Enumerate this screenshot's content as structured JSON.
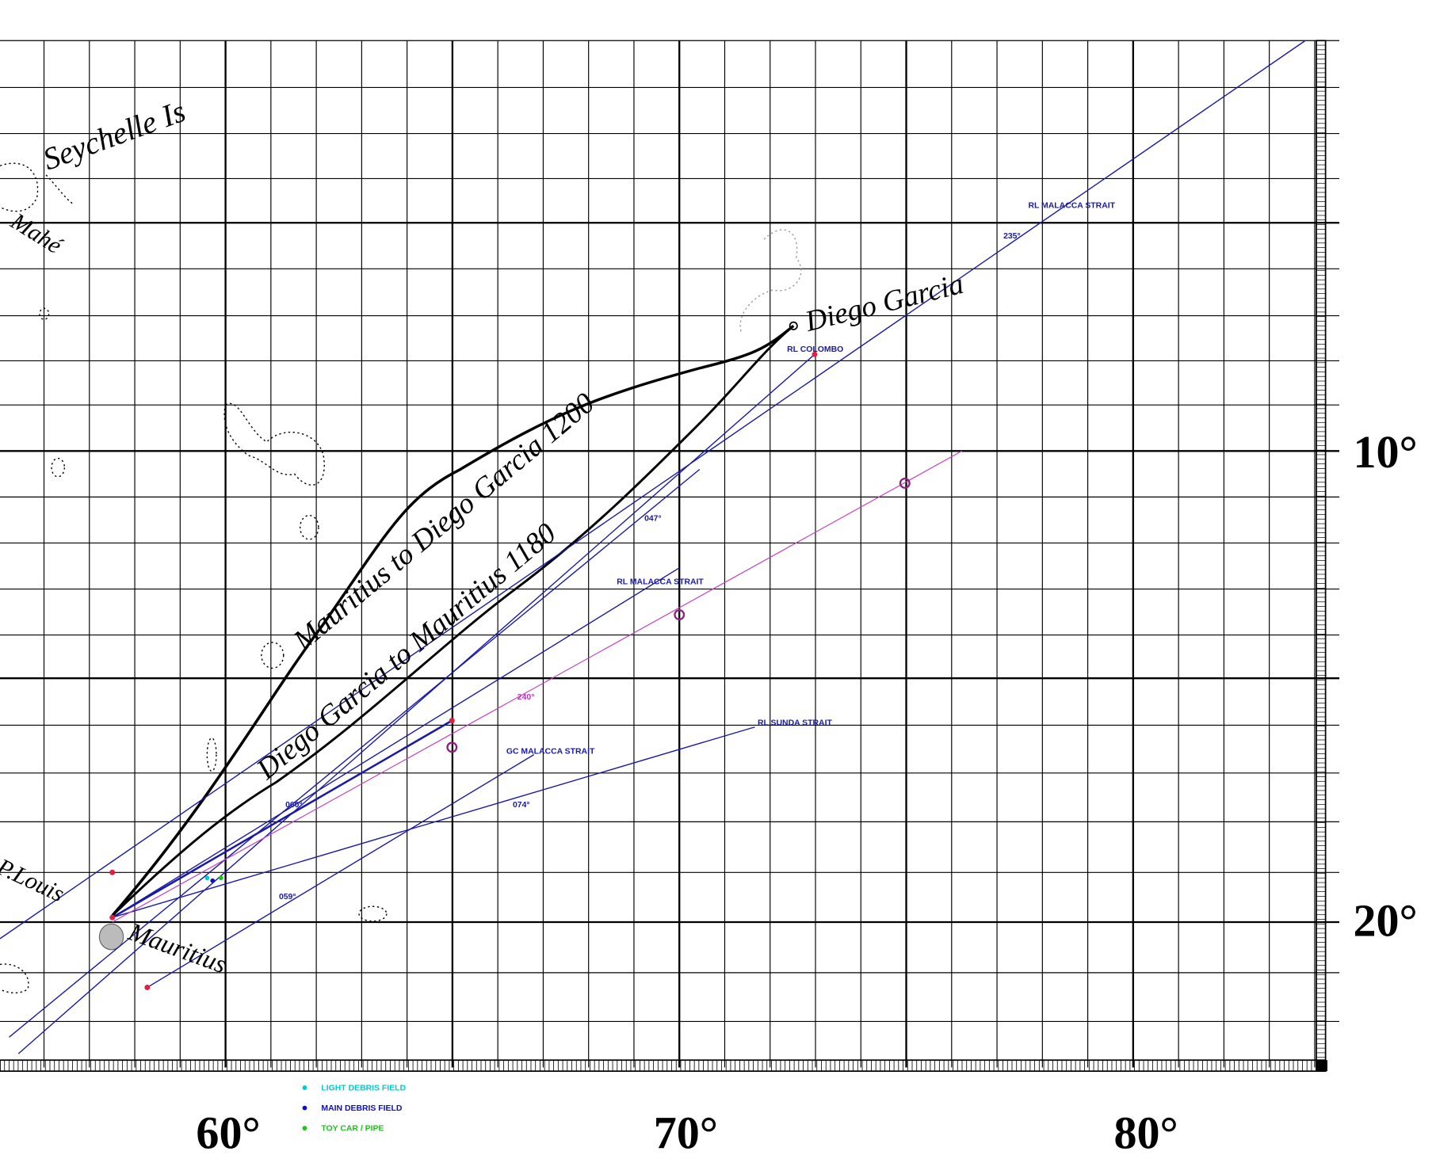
{
  "map": {
    "places": {
      "seychelles": "Seychelle Is",
      "mahe": "Mahé",
      "port_louis": "P.Louis",
      "mauritius": "Mauritius",
      "diego_garcia": "Diego Garcia"
    },
    "routes": [
      "Mauritius to Diego Garcia 1200",
      "Diego Garcia to Mauritius 1180"
    ],
    "line_labels": [
      "RL  MALACCA STRAIT",
      "RL COLOMBO",
      "RL  MALACCA STRAIT",
      "RL SUNDA STRAIT",
      "GC  MALACCA STRAIT"
    ],
    "bearings": [
      "235°",
      "047°",
      "240°",
      "060°",
      "074°",
      "059°"
    ],
    "longitude_labels": [
      "60°",
      "70°",
      "80°"
    ],
    "latitude_labels": [
      "10°",
      "20°"
    ],
    "legend": [
      "LIGHT DEBRIS FIELD",
      "MAIN DEBRIS FIELD",
      "TOY CAR / PIPE"
    ]
  }
}
